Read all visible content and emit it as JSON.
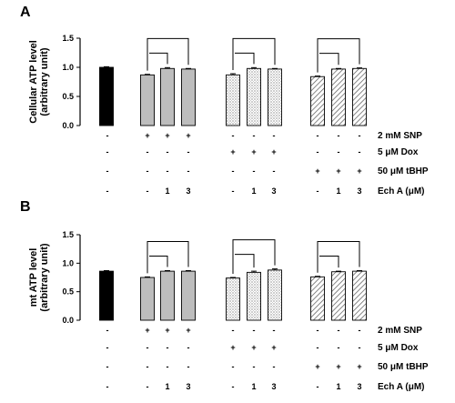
{
  "chart_data": [
    {
      "type": "bar",
      "panel": "A",
      "ylabel_lines": [
        "Cellular ATP level",
        "(arbitrary unit)"
      ],
      "ylim": [
        0,
        1.5
      ],
      "yticks": [
        "0.0",
        "0.5",
        "1.0",
        "1.5"
      ],
      "groups": [
        {
          "pattern": "solid",
          "values": [
            1.0
          ]
        },
        {
          "pattern": "gray",
          "values": [
            0.87,
            0.98,
            0.97
          ]
        },
        {
          "pattern": "dots",
          "values": [
            0.87,
            0.98,
            0.97
          ]
        },
        {
          "pattern": "hatch",
          "values": [
            0.84,
            0.97,
            0.98
          ]
        }
      ],
      "errors": [
        0.01,
        0.01,
        0.015,
        0.01,
        0.02,
        0.015,
        0.01,
        0.01,
        0.01,
        0.01
      ]
    },
    {
      "type": "bar",
      "panel": "B",
      "ylabel_lines": [
        "mt ATP level",
        "(arbitrary unit)"
      ],
      "ylim": [
        0,
        1.5
      ],
      "yticks": [
        "0.0",
        "0.5",
        "1.0",
        "1.5"
      ],
      "groups": [
        {
          "pattern": "solid",
          "values": [
            0.86
          ]
        },
        {
          "pattern": "gray",
          "values": [
            0.75,
            0.86,
            0.86
          ]
        },
        {
          "pattern": "dots",
          "values": [
            0.74,
            0.84,
            0.88
          ]
        },
        {
          "pattern": "hatch",
          "values": [
            0.76,
            0.85,
            0.86
          ]
        }
      ],
      "errors": [
        0.01,
        0.01,
        0.01,
        0.01,
        0.01,
        0.02,
        0.02,
        0.01,
        0.01,
        0.01
      ]
    }
  ],
  "conditions": [
    {
      "label": "2 mM SNP",
      "marks": [
        "-",
        "+",
        "+",
        "+",
        "-",
        "-",
        "-",
        "-",
        "-",
        "-"
      ]
    },
    {
      "label": "5 μM Dox",
      "marks": [
        "-",
        "-",
        "-",
        "-",
        "+",
        "+",
        "+",
        "-",
        "-",
        "-"
      ]
    },
    {
      "label": "50 μM tBHP",
      "marks": [
        "-",
        "-",
        "-",
        "-",
        "-",
        "-",
        "-",
        "+",
        "+",
        "+"
      ]
    },
    {
      "label": "Ech A (μM)",
      "marks": [
        "-",
        "-",
        "1",
        "3",
        "-",
        "1",
        "3",
        "-",
        "1",
        "3"
      ]
    }
  ],
  "colors": {
    "solid": "#000000",
    "gray": "#bdbdbd",
    "dots": "#ffffff",
    "hatch": "#ffffff",
    "axis": "#000000"
  }
}
